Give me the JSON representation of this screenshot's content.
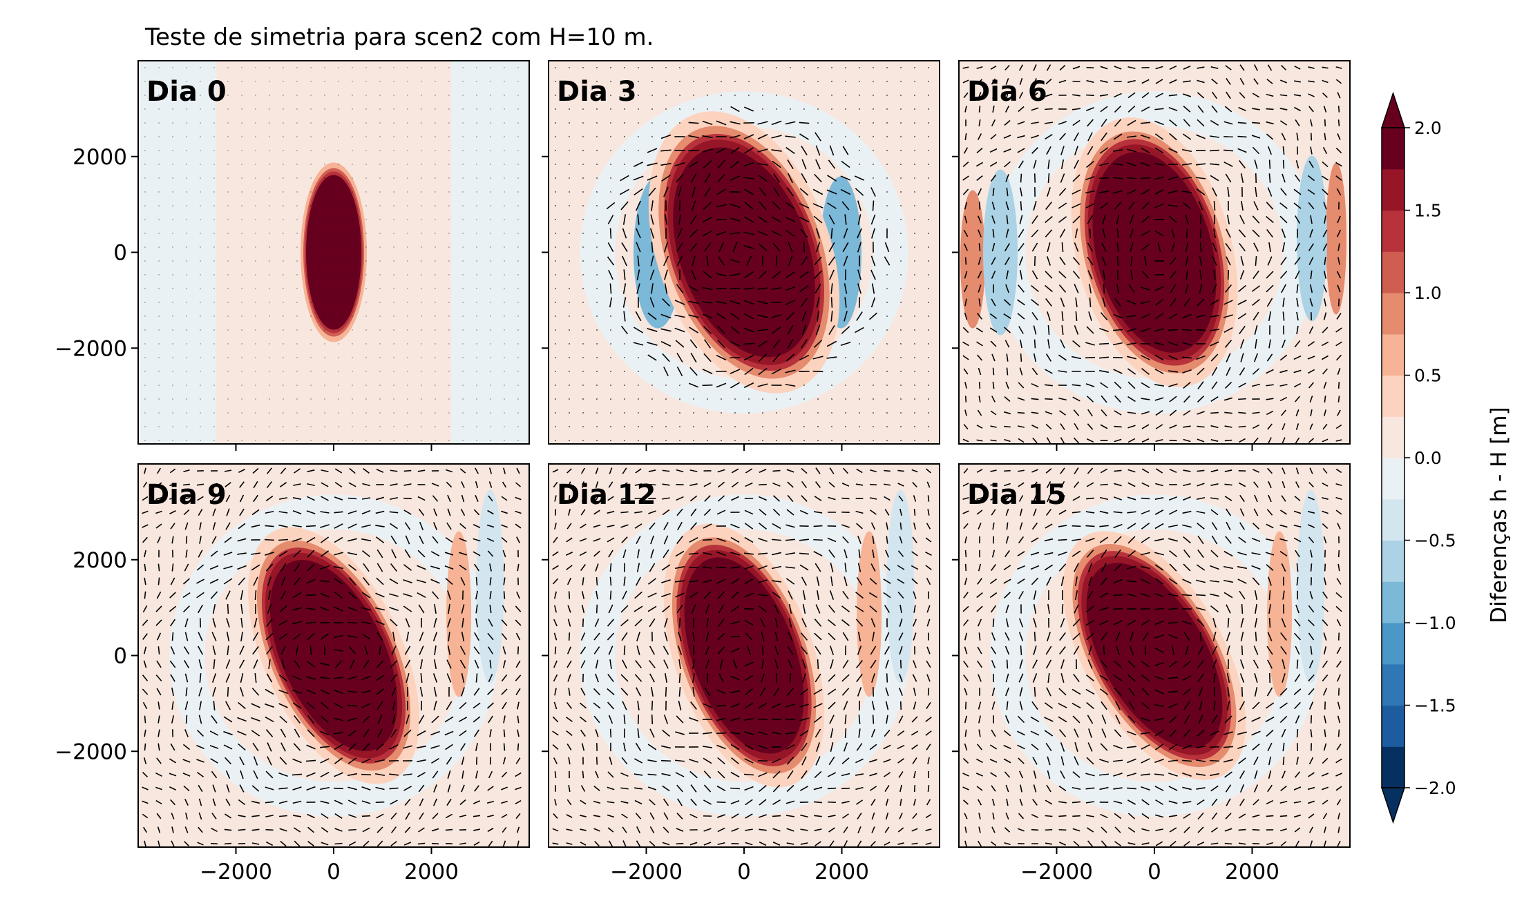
{
  "chart_data": {
    "type": "contour+quiver",
    "title": "Teste de simetria para scen2 com H=10 m.",
    "panels": [
      {
        "label": "Dia 0",
        "day": 0
      },
      {
        "label": "Dia 3",
        "day": 3
      },
      {
        "label": "Dia 6",
        "day": 6
      },
      {
        "label": "Dia 9",
        "day": 9
      },
      {
        "label": "Dia 12",
        "day": 12
      },
      {
        "label": "Dia 15",
        "day": 15
      }
    ],
    "xlim": [
      -4000,
      4000
    ],
    "ylim": [
      -4000,
      4000
    ],
    "xticks": [
      -2000,
      0,
      2000
    ],
    "yticks": [
      -2000,
      0,
      2000
    ],
    "xtick_labels": [
      "−2000",
      "0",
      "2000"
    ],
    "ytick_labels": [
      "2000",
      "0",
      "−2000"
    ],
    "colorbar": {
      "label": "Diferenças h - H [m]",
      "vmin": -2.0,
      "vmax": 2.0,
      "levels": 16,
      "extend": "both",
      "ticks": [
        2.0,
        1.5,
        1.0,
        0.5,
        0.0,
        -0.5,
        -1.0,
        -1.5,
        -2.0
      ],
      "tick_labels": [
        "2.0",
        "1.5",
        "1.0",
        "0.5",
        "0.0",
        "−0.5",
        "−1.0",
        "−1.5",
        "−2.0"
      ],
      "colors": [
        "#053061",
        "#1c5c9f",
        "#2f78b5",
        "#4b98c8",
        "#7cb8d7",
        "#abd2e5",
        "#d3e5ef",
        "#eaf1f5",
        "#f8e7df",
        "#fcd3bf",
        "#f6b395",
        "#e58b6e",
        "#cf5e50",
        "#b8323b",
        "#961628",
        "#67001f"
      ],
      "cmap": "RdBu_r"
    }
  }
}
